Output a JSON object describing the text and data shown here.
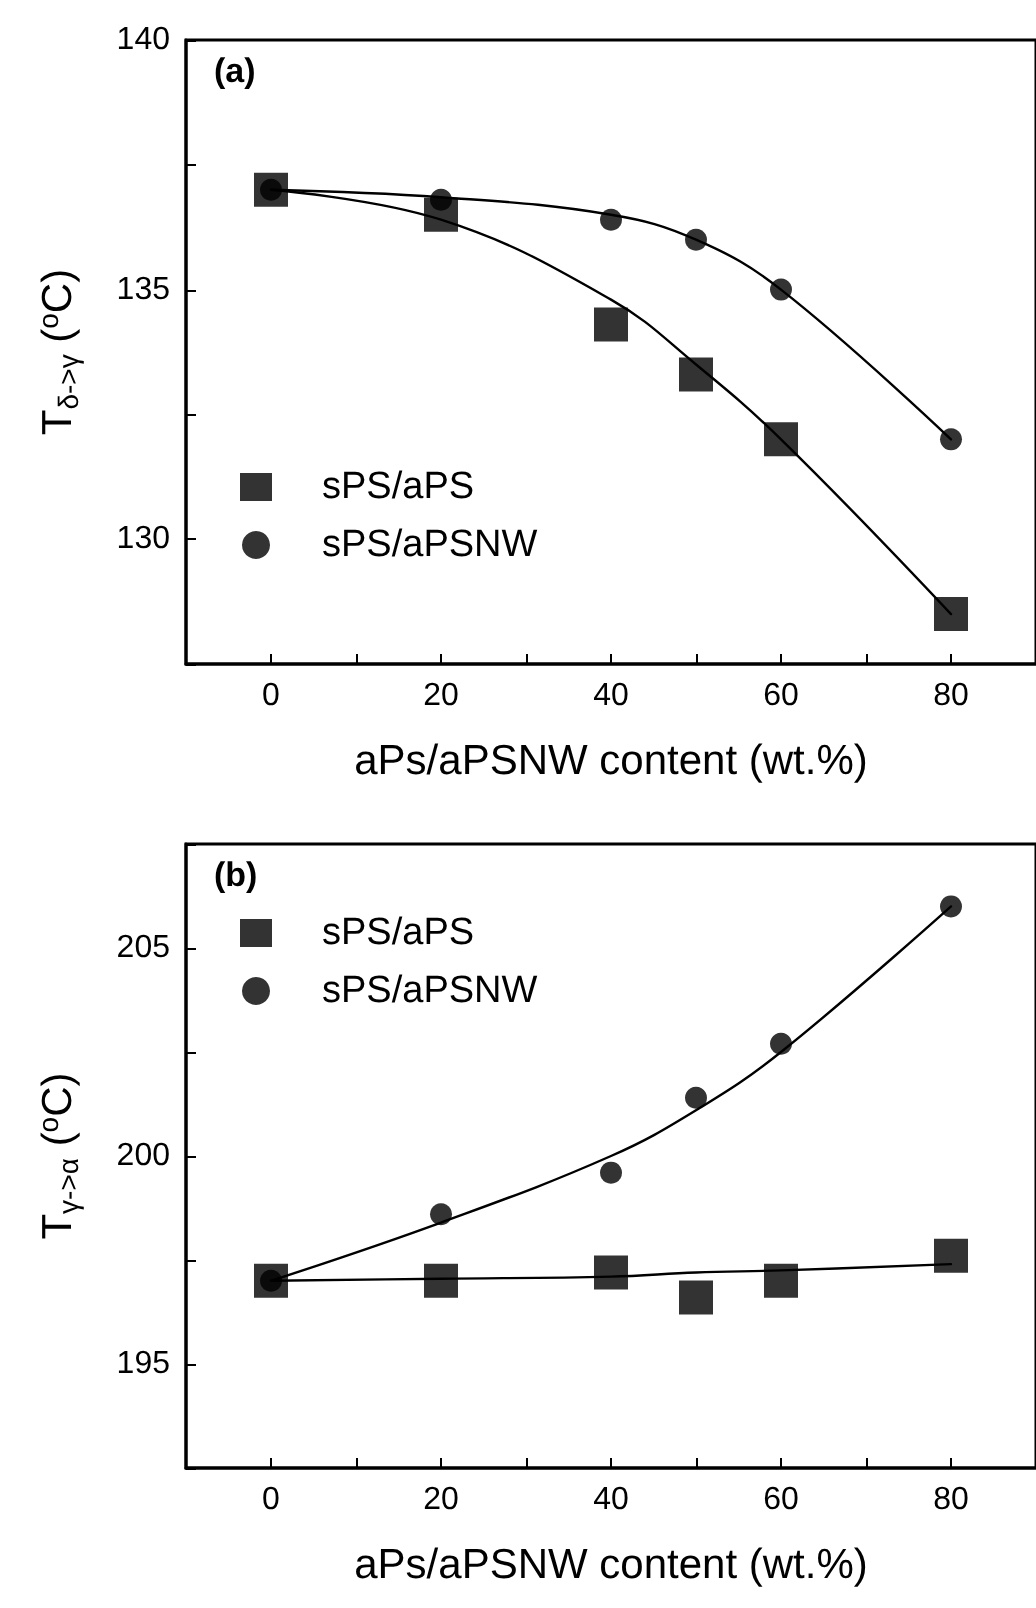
{
  "chart_data": [
    {
      "type": "scatter",
      "annotations": [
        "(a)"
      ],
      "xlabel": "aPs/aPSNW content (wt.%)",
      "ylabel": "T$_{δ->γ}$ ($^{o}$C)",
      "xlim": [
        -10,
        90
      ],
      "ylim": [
        127.5,
        140
      ],
      "xticks": [
        0,
        {
          "value": 10,
          "label": null
        },
        20,
        {
          "value": 30,
          "label": null
        },
        40,
        {
          "value": 50,
          "label": null
        },
        60,
        {
          "value": 70,
          "label": null
        },
        80
      ],
      "yticks": [
        {
          "value": 127.5,
          "label": null
        },
        130,
        {
          "value": 132.5,
          "label": null
        },
        135,
        {
          "value": 137.5,
          "label": null
        },
        140
      ],
      "grid": false,
      "legend": "bottom left",
      "series": [
        {
          "name": "sPS/aPS",
          "color": "#000000",
          "marker": "square",
          "x": [
            0,
            20,
            40,
            50,
            60,
            80
          ],
          "values": [
            137.0,
            136.5,
            134.3,
            133.3,
            132.0,
            128.5
          ]
        },
        {
          "name": "sPS/aPSNW",
          "color": "#000000",
          "marker": "circle",
          "x": [
            0,
            20,
            40,
            50,
            60,
            80
          ],
          "values": [
            137.0,
            136.8,
            136.4,
            136.0,
            135.0,
            132.0
          ]
        },
        {
          "type": "line",
          "color": "#000000",
          "marker": "none",
          "x": [
            0,
            20,
            40,
            50,
            60,
            80
          ],
          "values": [
            137.0,
            136.4,
            134.8,
            133.5,
            132.0,
            128.5
          ]
        },
        {
          "type": "line",
          "color": "#000000",
          "marker": "none",
          "x": [
            0,
            20,
            40,
            50,
            60,
            80
          ],
          "values": [
            137.0,
            136.85,
            136.5,
            136.0,
            135.0,
            132.0
          ]
        }
      ]
    },
    {
      "type": "scatter",
      "annotations": [
        "(b)"
      ],
      "xlabel": "aPs/aPSNW content (wt.%)",
      "ylabel": "T$_{γ->α}$ ($^{o}$C)",
      "xlim": [
        -10,
        90
      ],
      "ylim": [
        192.5,
        207.5
      ],
      "xticks": [
        0,
        {
          "value": 10,
          "label": null
        },
        20,
        {
          "value": 30,
          "label": null
        },
        40,
        {
          "value": 50,
          "label": null
        },
        60,
        {
          "value": 70,
          "label": null
        },
        80
      ],
      "yticks": [
        {
          "value": 192.5,
          "label": null
        },
        195,
        {
          "value": 197.5,
          "label": null
        },
        200,
        {
          "value": 202.5,
          "label": null
        },
        205,
        {
          "value": 207.5,
          "label": null
        }
      ],
      "grid": false,
      "legend": "top left",
      "series": [
        {
          "name": "sPS/aPS",
          "color": "#000000",
          "marker": "square",
          "x": [
            0,
            20,
            40,
            50,
            60,
            80
          ],
          "values": [
            197.0,
            197.0,
            197.2,
            196.6,
            197.0,
            197.6
          ]
        },
        {
          "name": "sPS/aPSNW",
          "color": "#000000",
          "marker": "circle",
          "x": [
            0,
            20,
            40,
            50,
            60,
            80
          ],
          "values": [
            197.0,
            198.6,
            199.6,
            201.4,
            202.7,
            206.0
          ]
        },
        {
          "type": "line",
          "color": "#000000",
          "marker": "none",
          "x": [
            0,
            20,
            40,
            50,
            60,
            80
          ],
          "values": [
            197.0,
            197.05,
            197.1,
            197.2,
            197.25,
            197.4
          ]
        },
        {
          "type": "line",
          "color": "#000000",
          "marker": "none",
          "x": [
            0,
            20,
            40,
            50,
            60,
            80
          ],
          "values": [
            197.0,
            198.4,
            200.0,
            201.1,
            202.5,
            206.0
          ]
        }
      ]
    }
  ]
}
